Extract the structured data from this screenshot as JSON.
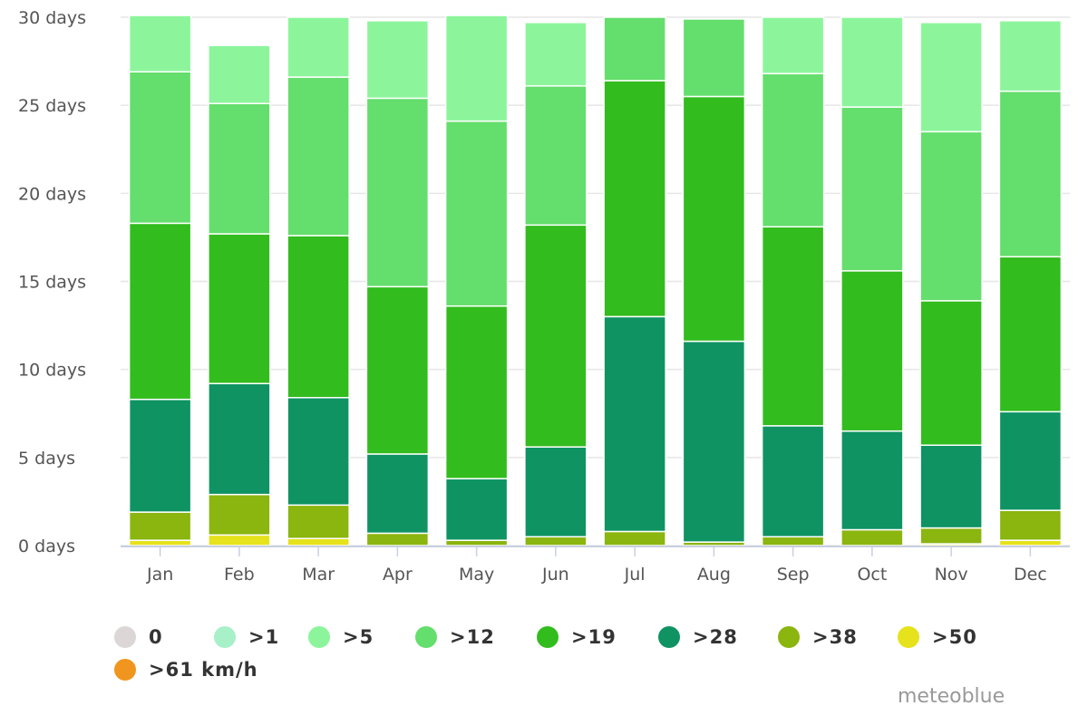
{
  "chart_data": {
    "type": "bar",
    "stacked": true,
    "categories": [
      "Jan",
      "Feb",
      "Mar",
      "Apr",
      "May",
      "Jun",
      "Jul",
      "Aug",
      "Sep",
      "Oct",
      "Nov",
      "Dec"
    ],
    "ylim": [
      0,
      30
    ],
    "yticks": [
      {
        "value": 0,
        "label": "0 days"
      },
      {
        "value": 5,
        "label": "5 days"
      },
      {
        "value": 10,
        "label": "10 days"
      },
      {
        "value": 15,
        "label": "15 days"
      },
      {
        "value": 20,
        "label": "20 days"
      },
      {
        "value": 25,
        "label": "25 days"
      },
      {
        "value": 30,
        "label": "30 days"
      }
    ],
    "grid": true,
    "legend_position": "bottom-left",
    "series": [
      {
        "name": "0",
        "color": "#dcd6d6",
        "values": [
          0,
          0,
          0,
          0,
          0,
          0,
          0,
          0,
          0,
          0,
          0,
          0
        ]
      },
      {
        "name": ">1",
        "color": "#a8f0c8",
        "values": [
          0,
          0,
          0,
          0,
          0,
          0,
          0,
          0,
          0,
          0,
          0,
          0
        ]
      },
      {
        "name": ">5",
        "color": "#8cf59c",
        "values": [
          3.2,
          3.3,
          3.4,
          4.4,
          6.0,
          3.6,
          0,
          0,
          3.2,
          5.1,
          6.2,
          4.0
        ]
      },
      {
        "name": ">12",
        "color": "#64de6c",
        "values": [
          8.6,
          7.4,
          9.0,
          10.7,
          10.5,
          7.9,
          3.6,
          4.4,
          8.7,
          9.3,
          9.6,
          9.4
        ]
      },
      {
        "name": ">19",
        "color": "#32bc1e",
        "values": [
          10.0,
          8.5,
          9.2,
          9.5,
          9.8,
          12.6,
          13.4,
          13.9,
          11.3,
          9.1,
          8.2,
          8.8
        ]
      },
      {
        "name": ">28",
        "color": "#0f9362",
        "values": [
          6.4,
          6.3,
          6.1,
          4.5,
          3.5,
          5.1,
          12.2,
          11.4,
          6.3,
          5.6,
          4.7,
          5.6
        ]
      },
      {
        "name": ">38",
        "color": "#8bb50f",
        "values": [
          1.6,
          2.3,
          1.9,
          0.7,
          0.3,
          0.5,
          0.8,
          0.2,
          0.5,
          0.9,
          0.9,
          1.7
        ]
      },
      {
        "name": ">50",
        "color": "#e6e21c",
        "values": [
          0.3,
          0.6,
          0.4,
          0,
          0,
          0,
          0,
          0,
          0,
          0,
          0.1,
          0.3
        ]
      },
      {
        "name": ">61 km/h",
        "color": "#f0961e",
        "values": [
          0,
          0,
          0,
          0,
          0,
          0,
          0,
          0,
          0,
          0,
          0,
          0
        ]
      }
    ]
  },
  "legend": [
    {
      "label": "0",
      "color": "#dcd6d6"
    },
    {
      "label": ">1",
      "color": "#a8f0c8"
    },
    {
      "label": ">5",
      "color": "#8cf59c"
    },
    {
      "label": ">12",
      "color": "#64de6c"
    },
    {
      "label": ">19",
      "color": "#32bc1e"
    },
    {
      "label": ">28",
      "color": "#0f9362"
    },
    {
      "label": ">38",
      "color": "#8bb50f"
    },
    {
      "label": ">50",
      "color": "#e6e21c"
    },
    {
      "label": ">61 km/h",
      "color": "#f0961e"
    }
  ],
  "credit": "meteoblue"
}
